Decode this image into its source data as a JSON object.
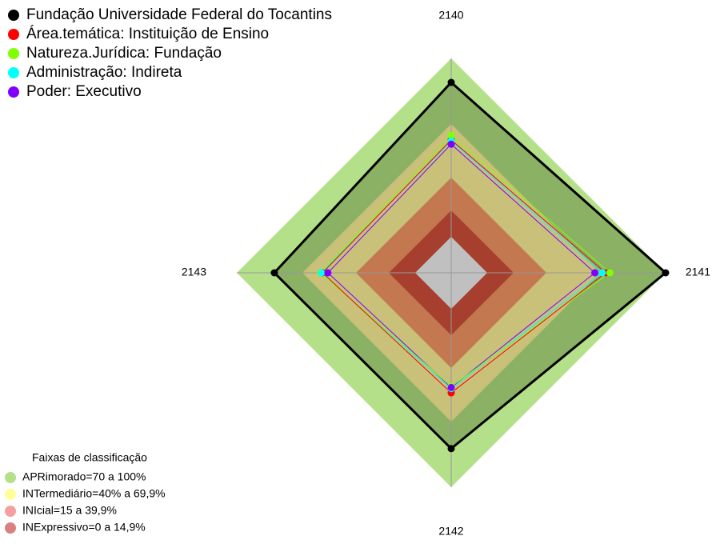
{
  "chart_data": {
    "type": "radar",
    "categories": [
      "2140",
      "2141",
      "2142",
      "2143"
    ],
    "ylim": [
      0,
      100
    ],
    "series": [
      {
        "name": "Fundação Universidade Federal do Tocantins",
        "color": "#000000",
        "values": [
          88.8,
          100,
          82,
          82.5
        ]
      },
      {
        "name": "Área.temática: Instituição de Ensino",
        "color": "#ff0000",
        "values": [
          62,
          72,
          56,
          60
        ]
      },
      {
        "name": "Natureza.Jurídica: Fundação",
        "color": "#80ff00",
        "values": [
          64,
          74,
          53,
          61
        ]
      },
      {
        "name": "Administração: Indireta",
        "color": "#00ffff",
        "values": [
          61.5,
          70.5,
          54,
          60.5
        ]
      },
      {
        "name": "Poder: Executivo",
        "color": "#8000ff",
        "values": [
          60,
          67,
          53.5,
          57.5
        ]
      }
    ],
    "band_legend": {
      "title": "Faixas de classificação",
      "items": [
        {
          "label": "APRimorado=70 a 100%",
          "color": "#b5e08a"
        },
        {
          "label": "INTermediário=40% a 69,9%",
          "color": "#ffff99"
        },
        {
          "label": "INIcial=15 a 39,9%",
          "color": "#f4a0a0"
        },
        {
          "label": "INExpressivo=0 a 14,9%",
          "color": "#d98080"
        }
      ]
    }
  }
}
